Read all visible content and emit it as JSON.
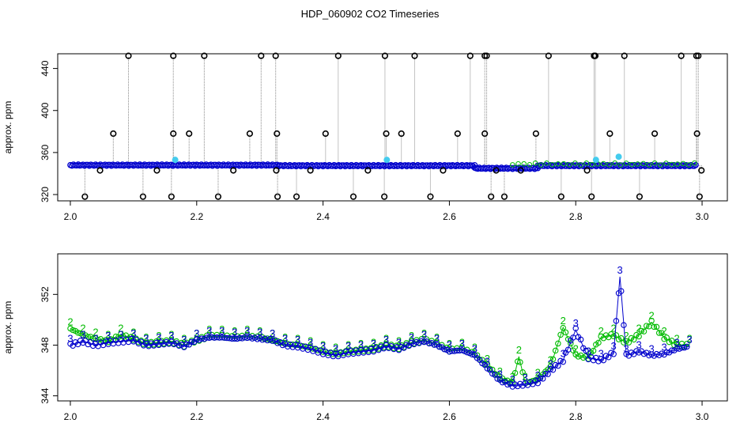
{
  "figure": {
    "title": "HDP_060902  CO2 Timeseries"
  },
  "colors": {
    "black": "#000000",
    "blue": "#0000cc",
    "cyan": "#44ccee",
    "green": "#00bb00",
    "gray": "#888888"
  },
  "chart_data": [
    {
      "type": "scatter",
      "id": "top",
      "title": "",
      "xlabel": "",
      "ylabel": "approx. ppm",
      "xlim": [
        1.98,
        3.04
      ],
      "ylim": [
        314,
        454
      ],
      "xticks": [
        "2.0",
        "2.2",
        "2.4",
        "2.6",
        "2.8",
        "3.0"
      ],
      "yticks": [
        "320",
        "360",
        "400",
        "440"
      ],
      "grid": false,
      "legend": "none",
      "series": [
        {
          "marker": "circle",
          "color": "black",
          "points_high": [
            2.092,
            2.163,
            2.212,
            2.302,
            2.325,
            2.424,
            2.498,
            2.545,
            2.633,
            2.656,
            2.659,
            2.757,
            2.829,
            2.831,
            2.877,
            2.967,
            2.991,
            2.994
          ],
          "points_mid": [
            2.068,
            2.163,
            2.188,
            2.284,
            2.327,
            2.404,
            2.5,
            2.524,
            2.613,
            2.656,
            2.737,
            2.854,
            2.925,
            2.992
          ],
          "points_low": [
            2.023,
            2.115,
            2.16,
            2.234,
            2.328,
            2.358,
            2.448,
            2.497,
            2.57,
            2.666,
            2.687,
            2.777,
            2.825,
            2.901,
            2.996
          ],
          "points_below": [
            2.047,
            2.137,
            2.258,
            2.326,
            2.38,
            2.471,
            2.59,
            2.674,
            2.713,
            2.818,
            2.999
          ],
          "values": {
            "high": 452,
            "mid": 378,
            "low": 318,
            "below": 343
          }
        },
        {
          "marker": "circle",
          "color": "cyan",
          "points": [
            [
              2.166,
              353
            ],
            [
              2.501,
              353
            ],
            [
              2.832,
              353
            ],
            [
              2.868,
              356
            ]
          ]
        },
        {
          "marker": "circle",
          "color": "blue",
          "description_values": "dense baseline track",
          "segments": [
            {
              "x": [
                2.0,
                2.33
              ],
              "y": 348
            },
            {
              "x": [
                2.33,
                2.64
              ],
              "y": 347.5
            },
            {
              "x": [
                2.64,
                2.74
              ],
              "y": 345
            },
            {
              "x": [
                2.74,
                2.99
              ],
              "y": 347.5
            }
          ]
        }
      ]
    },
    {
      "type": "line",
      "id": "bottom",
      "title": "",
      "xlabel": "",
      "ylabel": "approx. ppm",
      "xlim": [
        1.98,
        3.04
      ],
      "ylim": [
        343.6,
        355.2
      ],
      "xticks": [
        "2.0",
        "2.2",
        "2.4",
        "2.6",
        "2.8",
        "3.0"
      ],
      "yticks": [
        "344",
        "348",
        "352"
      ],
      "grid": false,
      "legend": "none",
      "series": [
        {
          "label": "3",
          "color": "blue",
          "marker": "circle",
          "x": [
            2.0,
            2.02,
            2.04,
            2.06,
            2.08,
            2.1,
            2.12,
            2.14,
            2.16,
            2.18,
            2.2,
            2.22,
            2.24,
            2.26,
            2.28,
            2.3,
            2.32,
            2.34,
            2.36,
            2.38,
            2.4,
            2.42,
            2.44,
            2.46,
            2.48,
            2.5,
            2.52,
            2.54,
            2.56,
            2.58,
            2.6,
            2.62,
            2.64,
            2.66,
            2.68,
            2.7,
            2.72,
            2.74,
            2.76,
            2.78,
            2.8,
            2.82,
            2.84,
            2.86,
            2.87,
            2.88,
            2.9,
            2.92,
            2.94,
            2.96,
            2.98
          ],
          "y": [
            348.0,
            348.3,
            348.0,
            348.2,
            348.3,
            348.4,
            348.0,
            348.1,
            348.2,
            347.9,
            348.4,
            348.6,
            348.6,
            348.5,
            348.6,
            348.5,
            348.4,
            348.0,
            347.9,
            347.7,
            347.4,
            347.2,
            347.4,
            347.5,
            347.6,
            347.9,
            347.7,
            348.1,
            348.3,
            348.0,
            347.5,
            347.6,
            347.2,
            346.2,
            345.2,
            344.8,
            344.9,
            345.1,
            346.0,
            346.8,
            349.2,
            347.0,
            346.8,
            347.4,
            353.4,
            347.2,
            347.5,
            347.2,
            347.3,
            347.7,
            347.9
          ]
        },
        {
          "label": "2",
          "color": "green",
          "marker": "circle",
          "x": [
            2.0,
            2.02,
            2.04,
            2.06,
            2.08,
            2.1,
            2.12,
            2.14,
            2.16,
            2.18,
            2.2,
            2.22,
            2.24,
            2.26,
            2.28,
            2.3,
            2.32,
            2.34,
            2.36,
            2.38,
            2.4,
            2.42,
            2.44,
            2.46,
            2.48,
            2.5,
            2.52,
            2.54,
            2.56,
            2.58,
            2.6,
            2.62,
            2.64,
            2.66,
            2.68,
            2.7,
            2.71,
            2.72,
            2.74,
            2.76,
            2.78,
            2.8,
            2.82,
            2.84,
            2.86,
            2.88,
            2.9,
            2.92,
            2.94,
            2.96,
            2.98
          ],
          "y": [
            349.3,
            348.8,
            348.5,
            348.3,
            348.8,
            348.5,
            348.1,
            348.2,
            348.3,
            348.0,
            348.4,
            348.7,
            348.7,
            348.6,
            348.7,
            348.6,
            348.4,
            348.1,
            348.0,
            347.8,
            347.5,
            347.3,
            347.5,
            347.6,
            347.7,
            348.0,
            347.8,
            348.2,
            348.4,
            348.1,
            347.6,
            347.7,
            347.3,
            346.4,
            345.4,
            345.0,
            347.1,
            345.0,
            345.3,
            346.3,
            349.4,
            347.2,
            347.0,
            348.6,
            348.8,
            348.2,
            348.8,
            349.8,
            348.6,
            348.0,
            348.0
          ]
        }
      ]
    }
  ]
}
